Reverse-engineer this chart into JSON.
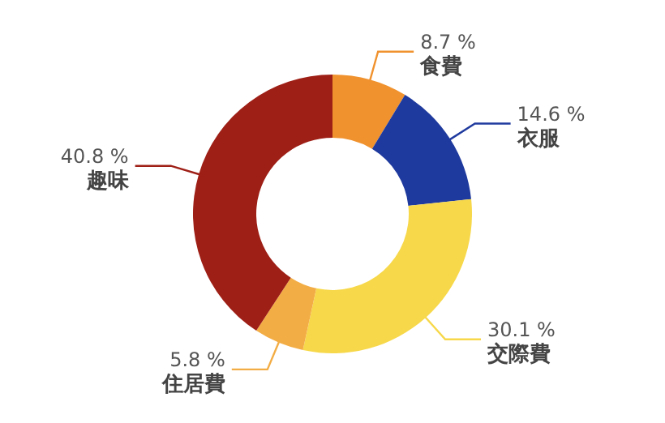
{
  "chart_data": {
    "type": "donut",
    "categories": [
      "食費",
      "衣服",
      "交際費",
      "住居費",
      "趣味"
    ],
    "values": [
      8.7,
      14.6,
      30.1,
      5.8,
      40.8
    ],
    "value_labels": [
      "8.7 %",
      "14.6 %",
      "30.1 %",
      "5.8 %",
      "40.8 %"
    ],
    "colors": [
      "#f0922e",
      "#1f3a9e",
      "#f7d84a",
      "#f3ad45",
      "#9e1f16"
    ]
  }
}
